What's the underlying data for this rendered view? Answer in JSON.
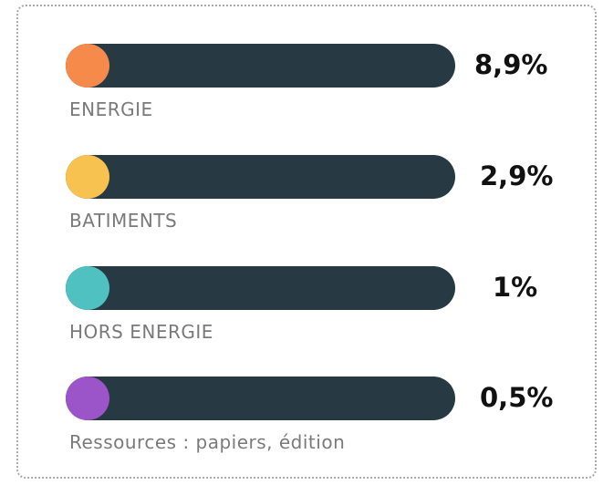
{
  "items": [
    {
      "label": "ENERGIE",
      "value": "8,9%",
      "color": "#f58a4b"
    },
    {
      "label": "BATIMENTS",
      "value": "2,9%",
      "color": "#f7c24f"
    },
    {
      "label": "HORS ENERGIE",
      "value": "1%",
      "color": "#4fc1c0"
    },
    {
      "label": "Ressources : papiers, édition",
      "value": "0,5%",
      "color": "#9b55c9"
    }
  ]
}
